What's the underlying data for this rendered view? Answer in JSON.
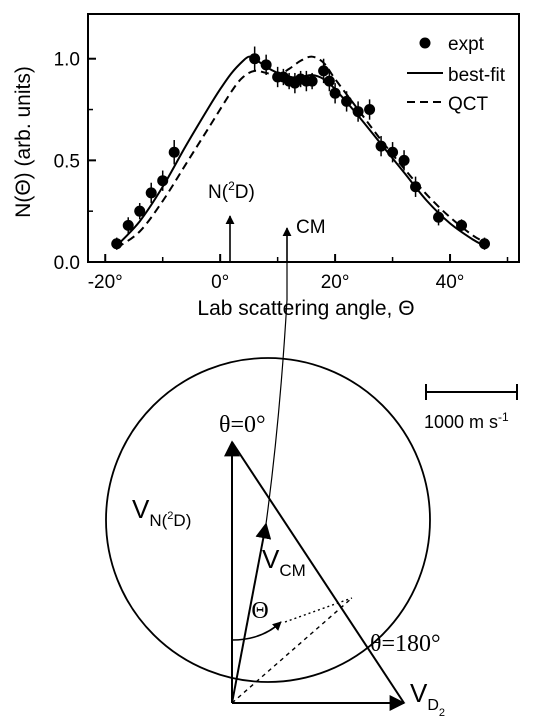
{
  "chart_data": {
    "type": "scatter",
    "ylabel": "N(Θ) (arb. units)",
    "xlabel": "Lab scattering angle, Θ",
    "xlim": [
      -23,
      52
    ],
    "ylim": [
      0,
      1.22
    ],
    "xticks": [
      -20,
      0,
      20,
      40
    ],
    "xtick_labels": [
      "-20°",
      "0°",
      "20°",
      "40°"
    ],
    "yticks": [
      0.0,
      0.5,
      1.0
    ],
    "ytick_labels": [
      "0.0",
      "0.5",
      "1.0"
    ],
    "grid": false,
    "legend_position": "top-right",
    "legend": [
      {
        "label": "expt",
        "style": "marker"
      },
      {
        "label": "best-fit",
        "style": "solid"
      },
      {
        "label": "QCT",
        "style": "dashed"
      }
    ],
    "series": [
      {
        "name": "expt",
        "kind": "points",
        "x": [
          -18,
          -16,
          -14,
          -12,
          -10,
          -8,
          6,
          8,
          10,
          11,
          12,
          13,
          14,
          15,
          16,
          18,
          19,
          20,
          22,
          24,
          26,
          28,
          30,
          32,
          34,
          38,
          42,
          46
        ],
        "y": [
          0.09,
          0.18,
          0.25,
          0.34,
          0.4,
          0.54,
          1.0,
          0.97,
          0.91,
          0.91,
          0.89,
          0.88,
          0.9,
          0.89,
          0.89,
          0.94,
          0.89,
          0.83,
          0.79,
          0.74,
          0.75,
          0.57,
          0.54,
          0.5,
          0.37,
          0.22,
          0.18,
          0.09
        ],
        "yerr": [
          0.03,
          0.04,
          0.04,
          0.05,
          0.05,
          0.06,
          0.06,
          0.05,
          0.05,
          0.04,
          0.04,
          0.05,
          0.04,
          0.05,
          0.04,
          0.06,
          0.05,
          0.05,
          0.05,
          0.05,
          0.05,
          0.05,
          0.05,
          0.05,
          0.05,
          0.04,
          0.03,
          0.03
        ]
      },
      {
        "name": "best-fit",
        "kind": "solid",
        "x": [
          -18,
          -14,
          -10,
          -6,
          -2,
          0,
          2,
          4,
          5,
          6,
          8,
          10,
          12,
          14,
          16,
          18,
          20,
          24,
          28,
          32,
          36,
          40,
          44,
          46
        ],
        "y": [
          0.08,
          0.2,
          0.37,
          0.57,
          0.76,
          0.85,
          0.93,
          0.99,
          1.01,
          1.0,
          0.96,
          0.93,
          0.91,
          0.91,
          0.92,
          0.9,
          0.85,
          0.72,
          0.58,
          0.44,
          0.3,
          0.19,
          0.11,
          0.08
        ]
      },
      {
        "name": "QCT",
        "kind": "dashed",
        "x": [
          -18,
          -14,
          -10,
          -6,
          -2,
          2,
          4,
          6,
          8,
          10,
          12,
          14,
          16,
          18,
          20,
          24,
          28,
          32,
          36,
          40,
          44,
          46
        ],
        "y": [
          0.07,
          0.15,
          0.3,
          0.48,
          0.66,
          0.84,
          0.91,
          0.94,
          0.93,
          0.92,
          0.95,
          0.99,
          1.01,
          0.98,
          0.9,
          0.75,
          0.6,
          0.46,
          0.33,
          0.22,
          0.13,
          0.1
        ]
      }
    ],
    "annotations": [
      {
        "label_prefix": "N(",
        "label_sup": "2",
        "label_suffix": "D)",
        "x": 0
      },
      {
        "label": "CM",
        "x": 10
      }
    ]
  },
  "diagram": {
    "scale_label": "1000 m s",
    "scale_label_sup": "-1",
    "theta_top": "θ=0°",
    "theta_bottom": "θ=180°",
    "big_theta": "Θ",
    "vec_n2d_prefix": "V",
    "vec_n2d_sub": "N(",
    "vec_n2d_sub_sup": "2",
    "vec_n2d_sub_suffix": "D)",
    "vec_cm_prefix": "V",
    "vec_cm_sub": "CM",
    "vec_d2_prefix": "V",
    "vec_d2_sub": "D",
    "vec_d2_sub_sub": "2"
  }
}
